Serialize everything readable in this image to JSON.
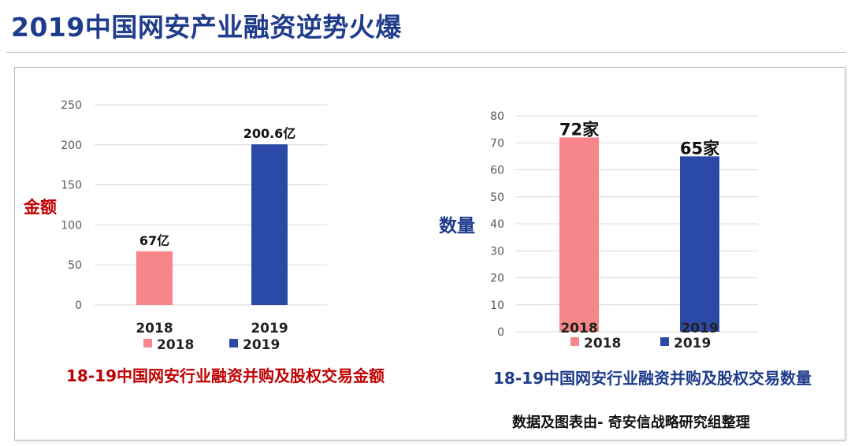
{
  "page": {
    "title": "2019中国网安产业融资逆势火爆",
    "source_note": "数据及图表由- 奇安信战略研究组整理"
  },
  "colors": {
    "title": "#1f3c8c",
    "series_2018": "#f7868a",
    "series_2019": "#2b4aa8",
    "left_accent": "#c00000",
    "right_accent": "#1f3c8c"
  },
  "chart_data": [
    {
      "type": "bar",
      "title": "18-19中国网安行业融资并购及股权交易金额",
      "ylabel": "金额",
      "xlabel": "",
      "categories": [
        "2018",
        "2019"
      ],
      "values": [
        67,
        200.6
      ],
      "data_labels": [
        "67亿",
        "200.6亿"
      ],
      "ylim": [
        0,
        250
      ],
      "yticks": [
        0,
        50,
        100,
        150,
        200,
        250
      ],
      "grid": true,
      "legend": {
        "position": "bottom",
        "entries": [
          "2018",
          "2019"
        ]
      }
    },
    {
      "type": "bar",
      "title": "18-19中国网安行业融资并购及股权交易数量",
      "ylabel": "数量",
      "xlabel": "",
      "categories": [
        "2018",
        "2019"
      ],
      "values": [
        72,
        65
      ],
      "data_labels": [
        "72家",
        "65家"
      ],
      "ylim": [
        0,
        80
      ],
      "yticks": [
        0,
        10,
        20,
        30,
        40,
        50,
        60,
        70,
        80
      ],
      "grid": true,
      "legend": {
        "position": "bottom",
        "entries": [
          "2018",
          "2019"
        ]
      }
    }
  ]
}
